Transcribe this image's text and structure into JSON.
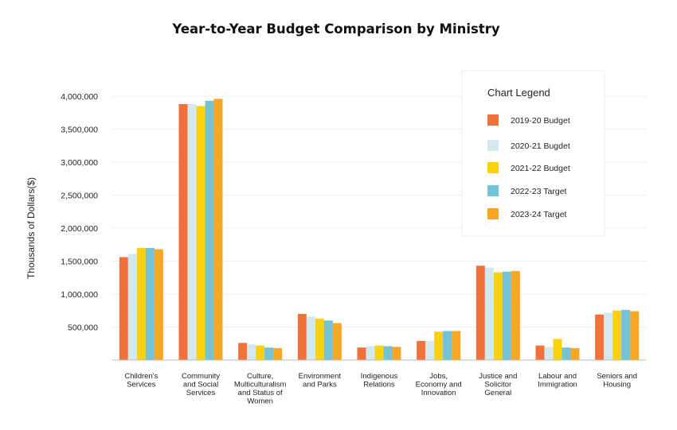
{
  "chart_data": {
    "type": "bar",
    "title": "Year-to-Year Budget Comparison by Ministry",
    "ylabel": "Thousands of Dollars($)",
    "xlabel": "",
    "ylim": [
      0,
      4000000
    ],
    "yticks": [
      {
        "value": 500000,
        "label": "500,000"
      },
      {
        "value": 1000000,
        "label": "1,000,000"
      },
      {
        "value": 1500000,
        "label": "1,500,000"
      },
      {
        "value": 2000000,
        "label": "2,000,000"
      },
      {
        "value": 2500000,
        "label": "2,500,000"
      },
      {
        "value": 3000000,
        "label": "3,000,000"
      },
      {
        "value": 3500000,
        "label": "3,500,000"
      },
      {
        "value": 4000000,
        "label": "4,000,000"
      }
    ],
    "grid": true,
    "legend_title": "Chart Legend",
    "legend_position": "top-right",
    "categories": [
      [
        "Children's",
        "Services"
      ],
      [
        "Community",
        "and Social",
        "Services"
      ],
      [
        "Culture,",
        "Multiculturalism",
        "and Status of",
        "Women"
      ],
      [
        "Environment",
        "and Parks"
      ],
      [
        "Indigenous",
        "Relations"
      ],
      [
        "Jobs,",
        "Economy and",
        "Innovation"
      ],
      [
        "Justice and",
        "Solicitor",
        "General"
      ],
      [
        "Labour and",
        "Immigration"
      ],
      [
        "Seniors and",
        "Housing"
      ]
    ],
    "series": [
      {
        "name": "2019-20 Budget",
        "color": "#f07139",
        "values": [
          1560000,
          3880000,
          260000,
          700000,
          190000,
          290000,
          1430000,
          220000,
          690000
        ]
      },
      {
        "name": "2020-21 Bugdet",
        "color": "#d3e9ef",
        "values": [
          1610000,
          3880000,
          240000,
          660000,
          210000,
          290000,
          1400000,
          200000,
          720000
        ]
      },
      {
        "name": "2021-22 Budget",
        "color": "#fcd20f",
        "values": [
          1700000,
          3850000,
          220000,
          630000,
          220000,
          430000,
          1330000,
          320000,
          750000
        ]
      },
      {
        "name": "2022-23 Target",
        "color": "#74c3d4",
        "values": [
          1700000,
          3930000,
          190000,
          600000,
          210000,
          440000,
          1340000,
          190000,
          760000
        ]
      },
      {
        "name": "2023-24 Target",
        "color": "#f8a626",
        "values": [
          1680000,
          3960000,
          180000,
          560000,
          200000,
          440000,
          1350000,
          180000,
          740000
        ]
      }
    ]
  }
}
